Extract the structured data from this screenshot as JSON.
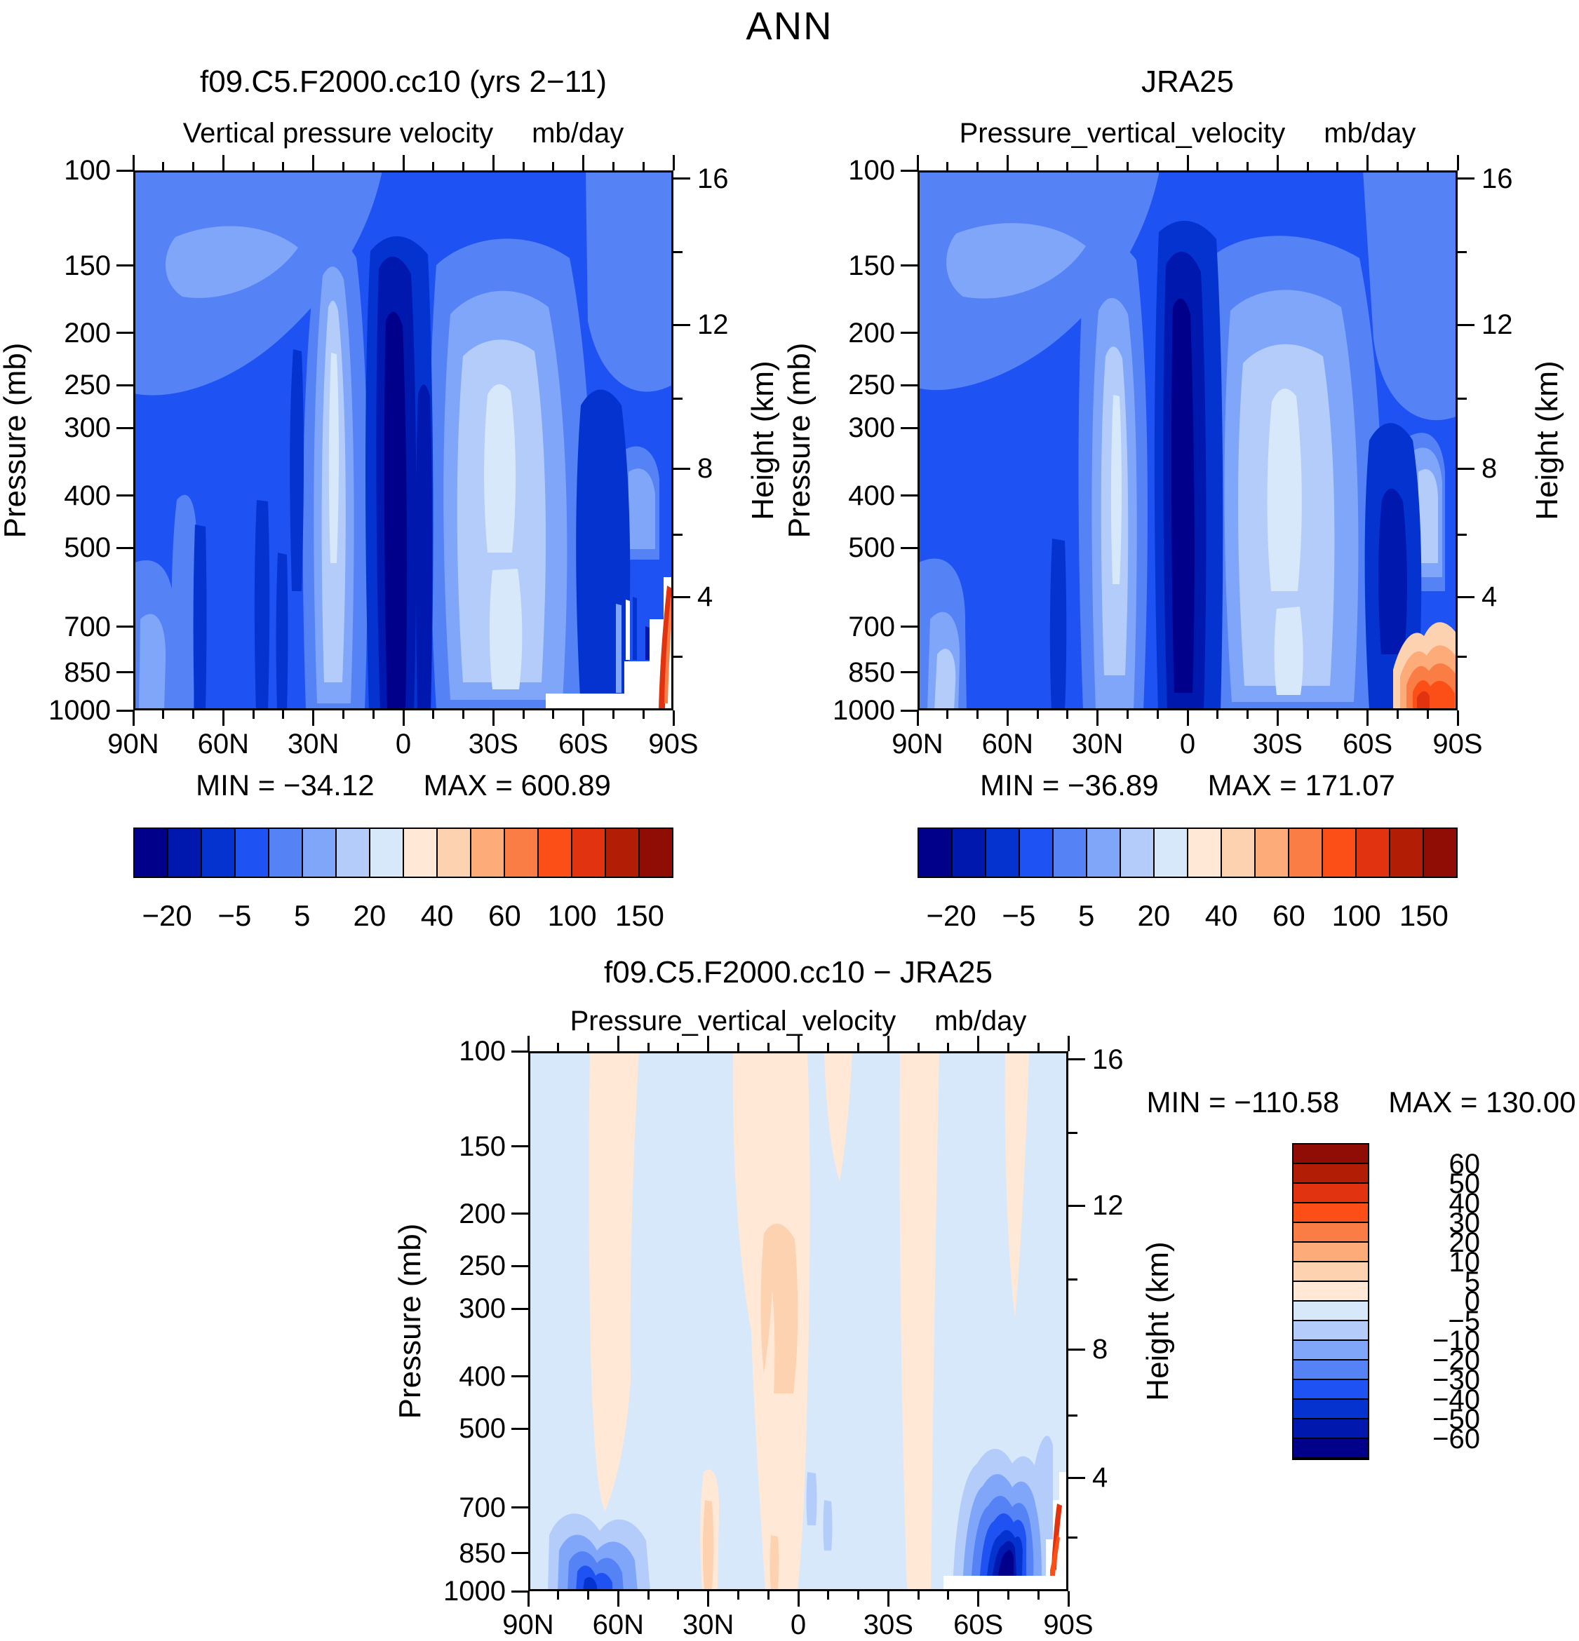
{
  "page_title": "ANN",
  "palette": [
    "#00008b",
    "#0018ad",
    "#0433d0",
    "#1e52f2",
    "#5582f5",
    "#80a6fa",
    "#b3ccfa",
    "#d7e8fb",
    "#ffe9d6",
    "#fdd2b0",
    "#fcab79",
    "#fa7d45",
    "#fb4f17",
    "#e1330f",
    "#b21e05",
    "#8f0d04"
  ],
  "colorbar_labels_top": [
    "−20",
    "−5",
    "5",
    "20",
    "40",
    "60",
    "100",
    "150"
  ],
  "colorbar_boundary_indices": [
    1,
    3,
    5,
    7,
    9,
    11,
    13,
    15
  ],
  "vertical_colorbar_labels": [
    "60",
    "50",
    "40",
    "30",
    "20",
    "10",
    "5",
    "0",
    "−5",
    "−10",
    "−20",
    "−30",
    "−40",
    "−50",
    "−60"
  ],
  "axes": {
    "pressure_label": "Pressure (mb)",
    "height_label": "Height (km)",
    "lat_major": [
      {
        "label": "90N",
        "deg": 90
      },
      {
        "label": "60N",
        "deg": 60
      },
      {
        "label": "30N",
        "deg": 30
      },
      {
        "label": "0",
        "deg": 0
      },
      {
        "label": "30S",
        "deg": -30
      },
      {
        "label": "60S",
        "deg": -60
      },
      {
        "label": "90S",
        "deg": -90
      }
    ],
    "lat_minor_deg": [
      80,
      70,
      50,
      40,
      20,
      10,
      -10,
      -20,
      -40,
      -50,
      -70,
      -80
    ],
    "pressure_ticks": [
      {
        "label": "100",
        "value": 100
      },
      {
        "label": "150",
        "value": 150
      },
      {
        "label": "200",
        "value": 200
      },
      {
        "label": "250",
        "value": 250
      },
      {
        "label": "300",
        "value": 300
      },
      {
        "label": "400",
        "value": 400
      },
      {
        "label": "500",
        "value": 500
      },
      {
        "label": "700",
        "value": 700
      },
      {
        "label": "850",
        "value": 850
      },
      {
        "label": "1000",
        "value": 1000
      }
    ],
    "height_ticks": [
      {
        "label": "16",
        "pressure": 103.5
      },
      {
        "label": "12",
        "pressure": 193.3
      },
      {
        "label": "8",
        "pressure": 356.5
      },
      {
        "label": "4",
        "pressure": 616.6
      }
    ],
    "height_minor_pressures": [
      141.7,
      264.4,
      472.2,
      795.0
    ]
  },
  "panels": [
    {
      "id": "model",
      "title": "f09.C5.F2000.cc10 (yrs 2−11)",
      "subtitle": "Vertical pressure velocity",
      "units": "mb/day",
      "min_label": "MIN = −34.12",
      "max_label": "MAX = 600.89"
    },
    {
      "id": "obs",
      "title": "JRA25",
      "subtitle": "Pressure_vertical_velocity",
      "units": "mb/day",
      "min_label": "MIN = −36.89",
      "max_label": "MAX = 171.07"
    },
    {
      "id": "diff",
      "title": "f09.C5.F2000.cc10 − JRA25",
      "subtitle": "Pressure_vertical_velocity",
      "units": "mb/day",
      "min_label": "MIN = −110.58",
      "max_label": "MAX = 130.00"
    }
  ],
  "chart_data": [
    {
      "type": "heatmap",
      "name": "f09.C5.F2000.cc10 (yrs 2−11)",
      "title": "Vertical pressure velocity",
      "units": "mb/day",
      "xlabel": "Latitude",
      "x_ticks": [
        "90N",
        "60N",
        "30N",
        "0",
        "30S",
        "60S",
        "90S"
      ],
      "ylabel_left": "Pressure (mb)",
      "y_ticks_mb": [
        100,
        150,
        200,
        250,
        300,
        400,
        500,
        700,
        850,
        1000
      ],
      "y_scale": "log",
      "ylabel_right": "Height (km)",
      "height_ticks_km": [
        16,
        12,
        8,
        4
      ],
      "contour_levels": [
        -20,
        -10,
        -5,
        0,
        5,
        10,
        20,
        30,
        40,
        50,
        60,
        80,
        100,
        125,
        150
      ],
      "min": -34.12,
      "max": 600.89,
      "lats_deg": [
        90,
        60,
        45,
        30,
        20,
        10,
        5,
        0,
        -5,
        -10,
        -20,
        -30,
        -45,
        -60,
        -70,
        -80,
        -90
      ],
      "pressures_mb": [
        150,
        300,
        500,
        700,
        850
      ],
      "approx_values_mb_per_day": [
        [
          -2,
          -4,
          -3,
          0,
          4,
          -4,
          -24,
          -10,
          -14,
          -6,
          2,
          3,
          -2,
          -6,
          -4,
          -3,
          -2
        ],
        [
          0,
          -6,
          -3,
          10,
          16,
          0,
          -30,
          -12,
          -18,
          -8,
          10,
          18,
          0,
          -10,
          -5,
          2,
          4
        ],
        [
          2,
          -8,
          -4,
          12,
          18,
          2,
          -32,
          -10,
          -20,
          -6,
          14,
          22,
          2,
          -12,
          -6,
          4,
          8
        ],
        [
          3,
          -10,
          -5,
          10,
          14,
          0,
          -30,
          -8,
          -18,
          -4,
          12,
          18,
          2,
          -14,
          -5,
          40,
          null
        ],
        [
          4,
          -12,
          -6,
          8,
          10,
          -2,
          -26,
          -6,
          -14,
          -2,
          10,
          14,
          1,
          -10,
          20,
          150,
          null
        ]
      ],
      "masked": "white (below-surface) region near Antarctica, ~55S-90S at lowest levels",
      "note": "grid values estimated from contour shading"
    },
    {
      "type": "heatmap",
      "name": "JRA25",
      "title": "Pressure_vertical_velocity",
      "units": "mb/day",
      "xlabel": "Latitude",
      "x_ticks": [
        "90N",
        "60N",
        "30N",
        "0",
        "30S",
        "60S",
        "90S"
      ],
      "ylabel_left": "Pressure (mb)",
      "y_ticks_mb": [
        100,
        150,
        200,
        250,
        300,
        400,
        500,
        700,
        850,
        1000
      ],
      "y_scale": "log",
      "ylabel_right": "Height (km)",
      "height_ticks_km": [
        16,
        12,
        8,
        4
      ],
      "contour_levels": [
        -20,
        -10,
        -5,
        0,
        5,
        10,
        20,
        30,
        40,
        50,
        60,
        80,
        100,
        125,
        150
      ],
      "min": -36.89,
      "max": 171.07,
      "lats_deg": [
        90,
        60,
        45,
        30,
        20,
        10,
        5,
        0,
        -5,
        -10,
        -20,
        -30,
        -45,
        -60,
        -70,
        -80,
        -90
      ],
      "pressures_mb": [
        150,
        300,
        500,
        700,
        850
      ],
      "approx_values_mb_per_day": [
        [
          -2,
          -4,
          -3,
          1,
          5,
          -3,
          -22,
          -12,
          -12,
          -5,
          3,
          4,
          -2,
          -5,
          -3,
          -2,
          -2
        ],
        [
          0,
          -5,
          -3,
          8,
          15,
          2,
          -28,
          -14,
          -16,
          -6,
          12,
          20,
          1,
          -9,
          -4,
          3,
          4
        ],
        [
          1,
          -7,
          -4,
          10,
          18,
          4,
          -30,
          -12,
          -18,
          -4,
          16,
          24,
          2,
          -11,
          -8,
          6,
          8
        ],
        [
          2,
          -9,
          -5,
          9,
          14,
          2,
          -28,
          -10,
          -16,
          -2,
          14,
          20,
          2,
          -13,
          -10,
          60,
          30
        ],
        [
          5,
          -10,
          -5,
          7,
          10,
          0,
          -24,
          -8,
          -12,
          0,
          12,
          16,
          1,
          -10,
          10,
          120,
          40
        ]
      ],
      "note": "grid values estimated from contour shading"
    },
    {
      "type": "heatmap",
      "name": "f09.C5.F2000.cc10 − JRA25",
      "title": "Pressure_vertical_velocity",
      "units": "mb/day",
      "xlabel": "Latitude",
      "x_ticks": [
        "90N",
        "60N",
        "30N",
        "0",
        "30S",
        "60S",
        "90S"
      ],
      "ylabel_left": "Pressure (mb)",
      "y_ticks_mb": [
        100,
        150,
        200,
        250,
        300,
        400,
        500,
        700,
        850,
        1000
      ],
      "y_scale": "log",
      "ylabel_right": "Height (km)",
      "height_ticks_km": [
        16,
        12,
        8,
        4
      ],
      "contour_levels": [
        -60,
        -50,
        -40,
        -30,
        -20,
        -10,
        -5,
        0,
        5,
        10,
        20,
        30,
        40,
        50,
        60
      ],
      "legend_position": "right vertical labelbar",
      "min": -110.58,
      "max": 130.0,
      "lats_deg": [
        90,
        60,
        45,
        30,
        20,
        10,
        5,
        0,
        -5,
        -10,
        -20,
        -30,
        -45,
        -60,
        -70,
        -80,
        -90
      ],
      "pressures_mb": [
        150,
        300,
        500,
        700,
        850
      ],
      "approx_values_mb_per_day": [
        [
          0,
          1,
          0,
          -1,
          -1,
          -1,
          -2,
          2,
          -2,
          -1,
          -1,
          -1,
          0,
          -1,
          -1,
          -1,
          0
        ],
        [
          0,
          -1,
          0,
          2,
          1,
          -2,
          -2,
          2,
          -2,
          -2,
          -2,
          -2,
          -1,
          -1,
          -1,
          -1,
          0
        ],
        [
          1,
          -1,
          0,
          2,
          0,
          -2,
          -2,
          2,
          -2,
          -2,
          -2,
          -2,
          0,
          -1,
          2,
          -2,
          0
        ],
        [
          1,
          -5,
          0,
          1,
          0,
          -2,
          -2,
          2,
          -2,
          -2,
          -2,
          -2,
          0,
          -1,
          -30,
          3,
          null
        ],
        [
          2,
          -25,
          -10,
          1,
          3,
          -2,
          -2,
          2,
          -2,
          -2,
          -2,
          -2,
          0,
          -5,
          -80,
          40,
          null
        ]
      ],
      "masked": "white (below-surface) region near Antarctica, ~63S-90S at lowest levels",
      "note": "grid values estimated from contour shading"
    }
  ]
}
